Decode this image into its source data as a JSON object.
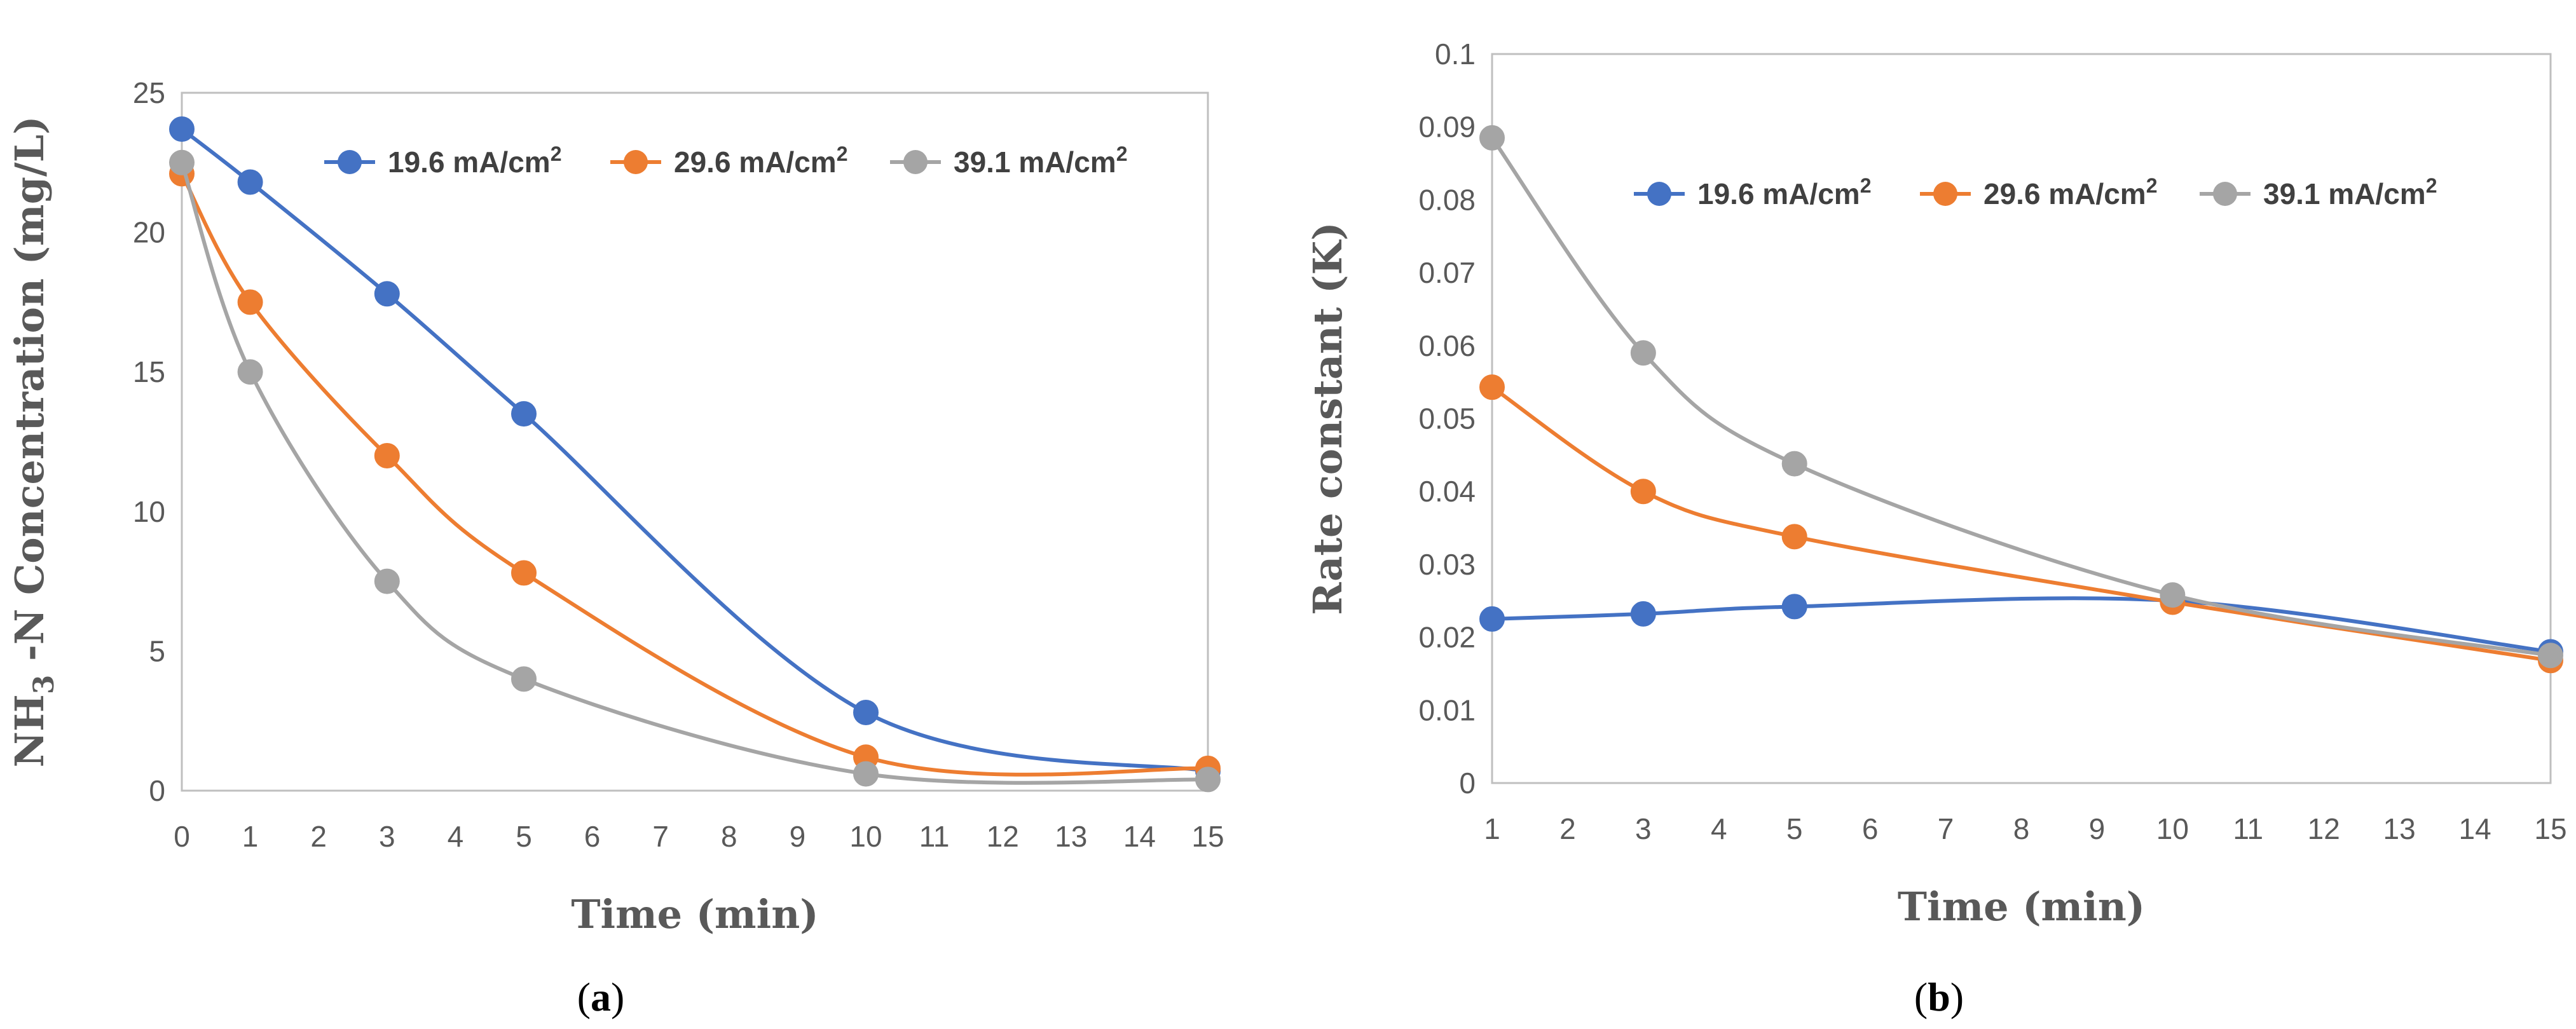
{
  "colors": {
    "series_blue": "#4472C4",
    "series_orange": "#ED7D31",
    "series_gray": "#A5A5A5",
    "axis": "#BFBFBF",
    "text": "#595959"
  },
  "chart_data": [
    {
      "type": "line",
      "panel_label": "a",
      "xlabel": "Time (min)",
      "ylabel_main": "NH",
      "ylabel_sub": "3",
      "ylabel_rest": " -N Concentration  (mg/L)",
      "xlim": [
        0,
        15
      ],
      "ylim": [
        0,
        25
      ],
      "xticks": [
        0,
        1,
        2,
        3,
        4,
        5,
        6,
        7,
        8,
        9,
        10,
        11,
        12,
        13,
        14,
        15
      ],
      "yticks": [
        0,
        5,
        10,
        15,
        20,
        25
      ],
      "x": [
        0,
        1,
        3,
        5,
        10,
        15
      ],
      "series": [
        {
          "name": "19.6 mA/cm",
          "sup": "2",
          "values": [
            23.7,
            21.8,
            17.8,
            13.5,
            2.8,
            0.7
          ]
        },
        {
          "name": "29.6 mA/cm",
          "sup": "2",
          "values": [
            22.1,
            17.5,
            12.0,
            7.8,
            1.2,
            0.8
          ]
        },
        {
          "name": "39.1 mA/cm",
          "sup": "2",
          "values": [
            22.5,
            15.0,
            7.5,
            4.0,
            0.6,
            0.4
          ]
        }
      ],
      "legend_position": "top-center"
    },
    {
      "type": "line",
      "panel_label": "b",
      "xlabel": "Time (min)",
      "ylabel": "Rate constant  (K)",
      "xlim": [
        1,
        15
      ],
      "ylim": [
        0,
        0.1
      ],
      "xticks": [
        1,
        2,
        3,
        4,
        5,
        6,
        7,
        8,
        9,
        10,
        11,
        12,
        13,
        14,
        15
      ],
      "yticks": [
        "0",
        "0.01",
        "0.02",
        "0.03",
        "0.04",
        "0.05",
        "0.06",
        "0.07",
        "0.08",
        "0.09",
        "0.1"
      ],
      "x": [
        1,
        3,
        5,
        10,
        15
      ],
      "series": [
        {
          "name": "19.6 mA/cm",
          "sup": "2",
          "values": [
            0.0225,
            0.0232,
            0.0242,
            0.025,
            0.018
          ]
        },
        {
          "name": "29.6 mA/cm",
          "sup": "2",
          "values": [
            0.0543,
            0.04,
            0.0338,
            0.0248,
            0.0168
          ]
        },
        {
          "name": "39.1 mA/cm",
          "sup": "2",
          "values": [
            0.0885,
            0.059,
            0.0438,
            0.0258,
            0.0175
          ]
        }
      ],
      "legend_position": "top-center"
    }
  ]
}
